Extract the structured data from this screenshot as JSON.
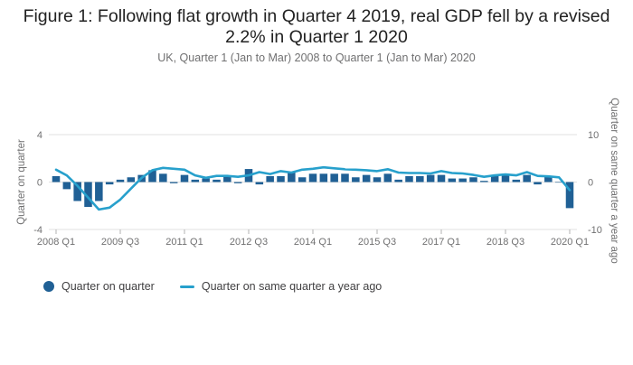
{
  "title": "Figure 1: Following flat growth in Quarter 4 2019, real GDP fell by a revised 2.2% in Quarter 1 2020",
  "title_line1": "Figure 1: Following flat growth in Quarter 4 2019, real GDP fell by a revised",
  "title_line2": "2.2% in Quarter 1 2020",
  "subtitle": "UK, Quarter 1 (Jan to Mar) 2008 to Quarter 1 (Jan to Mar) 2020",
  "colors": {
    "bars": "#206095",
    "line": "#27a0cc",
    "grid": "#e0e0e0"
  },
  "chart_data": {
    "type": "bar",
    "title": "Figure 1: Following flat growth in Quarter 4 2019, real GDP fell by a revised 2.2% in Quarter 1 2020",
    "subtitle": "UK, Quarter 1 (Jan to Mar) 2008 to Quarter 1 (Jan to Mar) 2020",
    "x_tick_labels": [
      "2008 Q1",
      "2009 Q3",
      "2011 Q1",
      "2012 Q3",
      "2014 Q1",
      "2015 Q3",
      "2017 Q1",
      "2018 Q3",
      "2020 Q1"
    ],
    "x_tick_indices": [
      0,
      6,
      12,
      18,
      24,
      30,
      36,
      42,
      48
    ],
    "categories": [
      "2008 Q1",
      "2008 Q2",
      "2008 Q3",
      "2008 Q4",
      "2009 Q1",
      "2009 Q2",
      "2009 Q3",
      "2009 Q4",
      "2010 Q1",
      "2010 Q2",
      "2010 Q3",
      "2010 Q4",
      "2011 Q1",
      "2011 Q2",
      "2011 Q3",
      "2011 Q4",
      "2012 Q1",
      "2012 Q2",
      "2012 Q3",
      "2012 Q4",
      "2013 Q1",
      "2013 Q2",
      "2013 Q3",
      "2013 Q4",
      "2014 Q1",
      "2014 Q2",
      "2014 Q3",
      "2014 Q4",
      "2015 Q1",
      "2015 Q2",
      "2015 Q3",
      "2015 Q4",
      "2016 Q1",
      "2016 Q2",
      "2016 Q3",
      "2016 Q4",
      "2017 Q1",
      "2017 Q2",
      "2017 Q3",
      "2017 Q4",
      "2018 Q1",
      "2018 Q2",
      "2018 Q3",
      "2018 Q4",
      "2019 Q1",
      "2019 Q2",
      "2019 Q3",
      "2019 Q4",
      "2020 Q1"
    ],
    "y_left": {
      "label": "Quarter on quarter",
      "ticks": [
        "4",
        "0",
        "-4"
      ],
      "ylim": [
        -4,
        4
      ]
    },
    "y_right": {
      "label": "Quarter on same quarter a year ago",
      "ticks": [
        "10",
        "0",
        "-10"
      ],
      "ylim": [
        -10,
        10
      ]
    },
    "grid": true,
    "legend_position": "bottom-left",
    "series": [
      {
        "name": "Quarter on quarter",
        "type": "bar",
        "axis": "left",
        "values": [
          0.5,
          -0.6,
          -1.6,
          -2.1,
          -1.6,
          -0.2,
          0.2,
          0.4,
          0.6,
          1.0,
          0.7,
          -0.1,
          0.6,
          0.2,
          0.3,
          0.2,
          0.5,
          -0.1,
          1.1,
          -0.2,
          0.5,
          0.5,
          0.8,
          0.4,
          0.7,
          0.7,
          0.7,
          0.7,
          0.4,
          0.6,
          0.4,
          0.7,
          0.2,
          0.5,
          0.5,
          0.6,
          0.6,
          0.3,
          0.3,
          0.4,
          0.1,
          0.5,
          0.7,
          0.2,
          0.6,
          -0.2,
          0.5,
          0.0,
          -2.2
        ]
      },
      {
        "name": "Quarter on same quarter a year ago",
        "type": "line",
        "axis": "right",
        "values": [
          2.6,
          1.4,
          -0.8,
          -3.3,
          -5.8,
          -5.4,
          -3.7,
          -1.4,
          0.9,
          2.5,
          3.0,
          2.8,
          2.6,
          1.4,
          0.9,
          1.3,
          1.3,
          1.1,
          1.4,
          2.1,
          1.7,
          2.3,
          2.0,
          2.6,
          2.8,
          3.1,
          2.9,
          2.7,
          2.6,
          2.5,
          2.3,
          2.7,
          2.0,
          1.9,
          1.9,
          1.8,
          2.3,
          1.9,
          1.8,
          1.5,
          1.1,
          1.4,
          1.6,
          1.4,
          2.1,
          1.3,
          1.2,
          1.0,
          -1.7
        ]
      }
    ]
  }
}
